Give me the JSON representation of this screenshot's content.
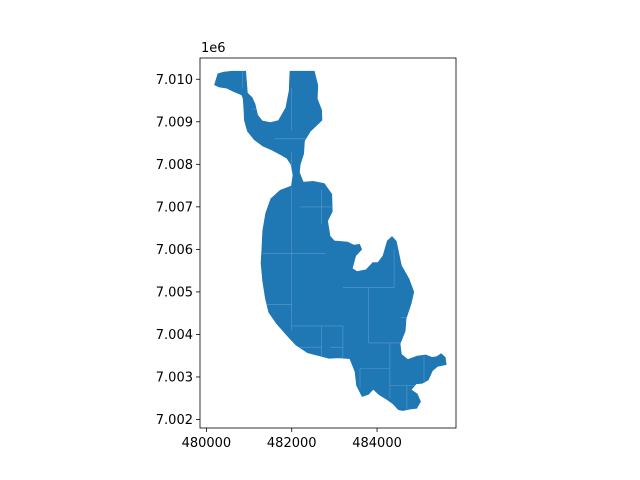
{
  "chart_data": {
    "type": "map",
    "title": "",
    "xlabel": "",
    "ylabel": "",
    "y_offset_label": "1e6",
    "xlim": [
      479850,
      485850
    ],
    "ylim": [
      7001800,
      7010500
    ],
    "x_ticks": [
      {
        "value": 480000,
        "label": "480000"
      },
      {
        "value": 482000,
        "label": "482000"
      },
      {
        "value": 484000,
        "label": "484000"
      }
    ],
    "y_ticks": [
      {
        "value": 7002000,
        "label": "7.002"
      },
      {
        "value": 7003000,
        "label": "7.003"
      },
      {
        "value": 7004000,
        "label": "7.004"
      },
      {
        "value": 7005000,
        "label": "7.005"
      },
      {
        "value": 7006000,
        "label": "7.006"
      },
      {
        "value": 7007000,
        "label": "7.007"
      },
      {
        "value": 7008000,
        "label": "7.008"
      },
      {
        "value": 7009000,
        "label": "7.009"
      },
      {
        "value": 7010000,
        "label": "7.010"
      }
    ],
    "polygon": {
      "fill": "#1f77b4",
      "grid_line_color": "#5b9bd0",
      "outline": [
        [
          480190,
          7009870
        ],
        [
          480270,
          7010130
        ],
        [
          480410,
          7010170
        ],
        [
          480600,
          7010190
        ],
        [
          480920,
          7010190
        ],
        [
          480960,
          7009680
        ],
        [
          481070,
          7009570
        ],
        [
          481140,
          7009420
        ],
        [
          481200,
          7009160
        ],
        [
          481310,
          7009020
        ],
        [
          481500,
          7008980
        ],
        [
          481690,
          7009030
        ],
        [
          481860,
          7009330
        ],
        [
          481940,
          7009740
        ],
        [
          481950,
          7010020
        ],
        [
          481960,
          7010190
        ],
        [
          482530,
          7010190
        ],
        [
          482610,
          7009860
        ],
        [
          482600,
          7009540
        ],
        [
          482700,
          7009280
        ],
        [
          482710,
          7009040
        ],
        [
          482600,
          7008930
        ],
        [
          482440,
          7008780
        ],
        [
          482300,
          7008550
        ],
        [
          482280,
          7008250
        ],
        [
          482200,
          7008000
        ],
        [
          482180,
          7007810
        ],
        [
          482270,
          7007580
        ],
        [
          482500,
          7007600
        ],
        [
          482760,
          7007550
        ],
        [
          482940,
          7007300
        ],
        [
          482950,
          7006890
        ],
        [
          482840,
          7006670
        ],
        [
          482900,
          7006310
        ],
        [
          483000,
          7006200
        ],
        [
          483310,
          7006170
        ],
        [
          483460,
          7006100
        ],
        [
          483590,
          7006120
        ],
        [
          483640,
          7006000
        ],
        [
          483500,
          7005850
        ],
        [
          483420,
          7005550
        ],
        [
          483530,
          7005480
        ],
        [
          483740,
          7005520
        ],
        [
          483900,
          7005690
        ],
        [
          484020,
          7005690
        ],
        [
          484140,
          7005850
        ],
        [
          484240,
          7006200
        ],
        [
          484350,
          7006300
        ],
        [
          484450,
          7006190
        ],
        [
          484570,
          7005620
        ],
        [
          484750,
          7005300
        ],
        [
          484860,
          7005000
        ],
        [
          484800,
          7004730
        ],
        [
          484680,
          7004370
        ],
        [
          484660,
          7004080
        ],
        [
          484540,
          7003780
        ],
        [
          484570,
          7003530
        ],
        [
          484720,
          7003410
        ],
        [
          484940,
          7003490
        ],
        [
          485140,
          7003520
        ],
        [
          485290,
          7003460
        ],
        [
          485400,
          7003480
        ],
        [
          485500,
          7003550
        ],
        [
          485600,
          7003460
        ],
        [
          485620,
          7003290
        ],
        [
          485420,
          7003250
        ],
        [
          485300,
          7003150
        ],
        [
          485200,
          7002930
        ],
        [
          485060,
          7002850
        ],
        [
          484920,
          7002840
        ],
        [
          484800,
          7002700
        ],
        [
          484940,
          7002600
        ],
        [
          485020,
          7002420
        ],
        [
          484930,
          7002260
        ],
        [
          484790,
          7002250
        ],
        [
          484600,
          7002210
        ],
        [
          484500,
          7002230
        ],
        [
          484370,
          7002370
        ],
        [
          484230,
          7002470
        ],
        [
          484050,
          7002580
        ],
        [
          483910,
          7002710
        ],
        [
          483800,
          7002590
        ],
        [
          483650,
          7002540
        ],
        [
          483520,
          7002800
        ],
        [
          483480,
          7003130
        ],
        [
          483360,
          7003430
        ],
        [
          483100,
          7003450
        ],
        [
          482870,
          7003440
        ],
        [
          482640,
          7003500
        ],
        [
          482370,
          7003570
        ],
        [
          482100,
          7003750
        ],
        [
          481900,
          7003960
        ],
        [
          481640,
          7004260
        ],
        [
          481460,
          7004520
        ],
        [
          481380,
          7004860
        ],
        [
          481320,
          7005250
        ],
        [
          481280,
          7005680
        ],
        [
          481300,
          7006030
        ],
        [
          481320,
          7006440
        ],
        [
          481390,
          7006850
        ],
        [
          481510,
          7007190
        ],
        [
          481730,
          7007390
        ],
        [
          481990,
          7007490
        ],
        [
          482030,
          7007750
        ],
        [
          481980,
          7008000
        ],
        [
          481890,
          7008140
        ],
        [
          481770,
          7008210
        ],
        [
          481550,
          7008330
        ],
        [
          481320,
          7008430
        ],
        [
          481120,
          7008580
        ],
        [
          480960,
          7008780
        ],
        [
          480890,
          7009030
        ],
        [
          480880,
          7009280
        ],
        [
          480860,
          7009550
        ],
        [
          480830,
          7009630
        ],
        [
          480640,
          7009710
        ],
        [
          480480,
          7009790
        ],
        [
          480290,
          7009820
        ]
      ],
      "internal_lines": [
        [
          [
            480850,
            7009800
          ],
          [
            480850,
            7010190
          ]
        ],
        [
          [
            481050,
            7009300
          ],
          [
            481600,
            7009300
          ]
        ],
        [
          [
            481600,
            7009000
          ],
          [
            481600,
            7009300
          ]
        ],
        [
          [
            482000,
            7008800
          ],
          [
            482000,
            7009800
          ]
        ],
        [
          [
            481600,
            7008600
          ],
          [
            482500,
            7008600
          ]
        ],
        [
          [
            482000,
            7007500
          ],
          [
            482000,
            7008300
          ]
        ],
        [
          [
            482200,
            7007000
          ],
          [
            482950,
            7007000
          ]
        ],
        [
          [
            482700,
            7006600
          ],
          [
            482700,
            7007400
          ]
        ],
        [
          [
            481320,
            7005900
          ],
          [
            482800,
            7005900
          ]
        ],
        [
          [
            482000,
            7004100
          ],
          [
            482000,
            7007450
          ]
        ],
        [
          [
            481400,
            7004700
          ],
          [
            482000,
            7004700
          ]
        ],
        [
          [
            482000,
            7004200
          ],
          [
            483200,
            7004200
          ]
        ],
        [
          [
            482700,
            7003450
          ],
          [
            482700,
            7004200
          ]
        ],
        [
          [
            482100,
            7003700
          ],
          [
            482700,
            7003700
          ]
        ],
        [
          [
            483200,
            7003450
          ],
          [
            483200,
            7004200
          ]
        ],
        [
          [
            482900,
            7003700
          ],
          [
            483200,
            7003700
          ]
        ],
        [
          [
            483200,
            7005100
          ],
          [
            484400,
            7005100
          ]
        ],
        [
          [
            483800,
            7003800
          ],
          [
            483800,
            7005100
          ]
        ],
        [
          [
            483800,
            7003800
          ],
          [
            484600,
            7003800
          ]
        ],
        [
          [
            483600,
            7002750
          ],
          [
            483600,
            7003200
          ]
        ],
        [
          [
            483600,
            7003200
          ],
          [
            484300,
            7003200
          ]
        ],
        [
          [
            484300,
            7002500
          ],
          [
            484300,
            7003800
          ]
        ],
        [
          [
            484300,
            7002800
          ],
          [
            484900,
            7002800
          ]
        ],
        [
          [
            484700,
            7002250
          ],
          [
            484700,
            7002800
          ]
        ],
        [
          [
            484400,
            7005100
          ],
          [
            484400,
            7006000
          ]
        ],
        [
          [
            484560,
            7004400
          ],
          [
            484840,
            7004400
          ]
        ],
        [
          [
            485100,
            7002900
          ],
          [
            485100,
            7003500
          ]
        ]
      ]
    }
  }
}
